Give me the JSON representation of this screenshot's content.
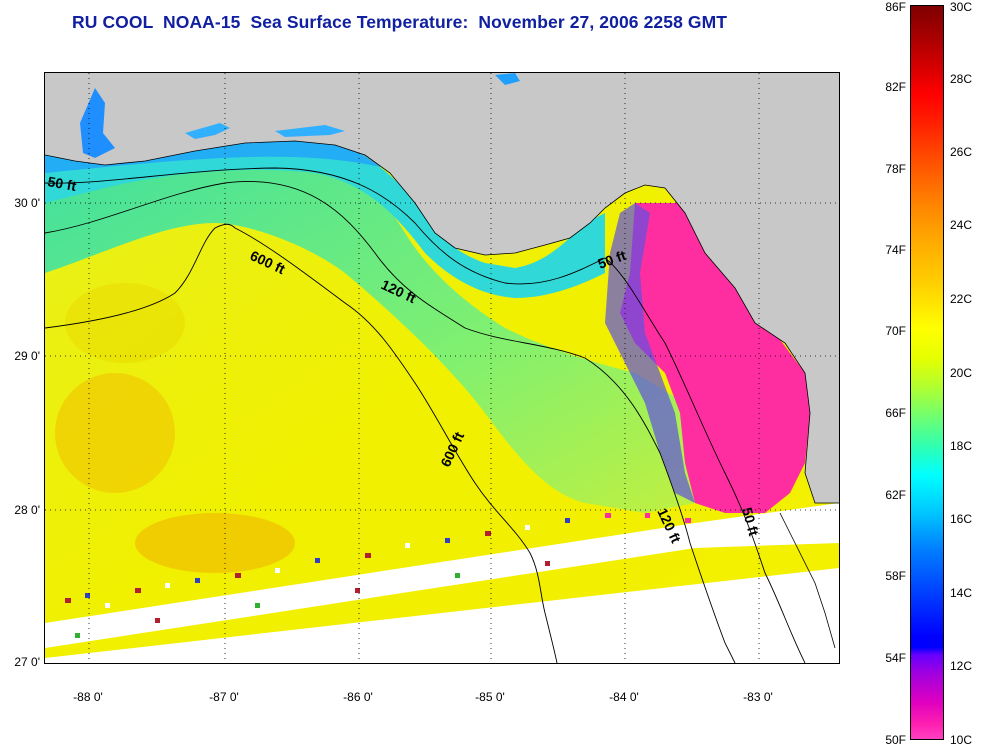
{
  "title": "RU COOL  NOAA-15  Sea Surface Temperature:  November 27, 2006 2258 GMT",
  "map": {
    "latitude_labels": [
      "30 0'",
      "29 0'",
      "28 0'",
      "27 0'"
    ],
    "longitude_labels": [
      "-88 0'",
      "-87 0'",
      "-86 0'",
      "-85 0'",
      "-84 0'",
      "-83 0'"
    ],
    "contour_labels": {
      "c50_west": "50 ft",
      "c600_upper": "600 ft",
      "c120_mid": "120 ft",
      "c50_bigbend": "50 ft",
      "c600_lower": "600 ft",
      "c120_south": "120 ft",
      "c50_south": "50 ft"
    },
    "colors": {
      "land": "#c8c8c8",
      "contour": "#000000",
      "no_data": "#ffffff"
    }
  },
  "colorbar": {
    "fahrenheit_labels": [
      "86F",
      "82F",
      "78F",
      "74F",
      "70F",
      "66F",
      "62F",
      "58F",
      "54F",
      "50F"
    ],
    "celsius_labels": [
      "30C",
      "28C",
      "26C",
      "24C",
      "22C",
      "20C",
      "18C",
      "16C",
      "14C",
      "12C",
      "10C"
    ]
  }
}
